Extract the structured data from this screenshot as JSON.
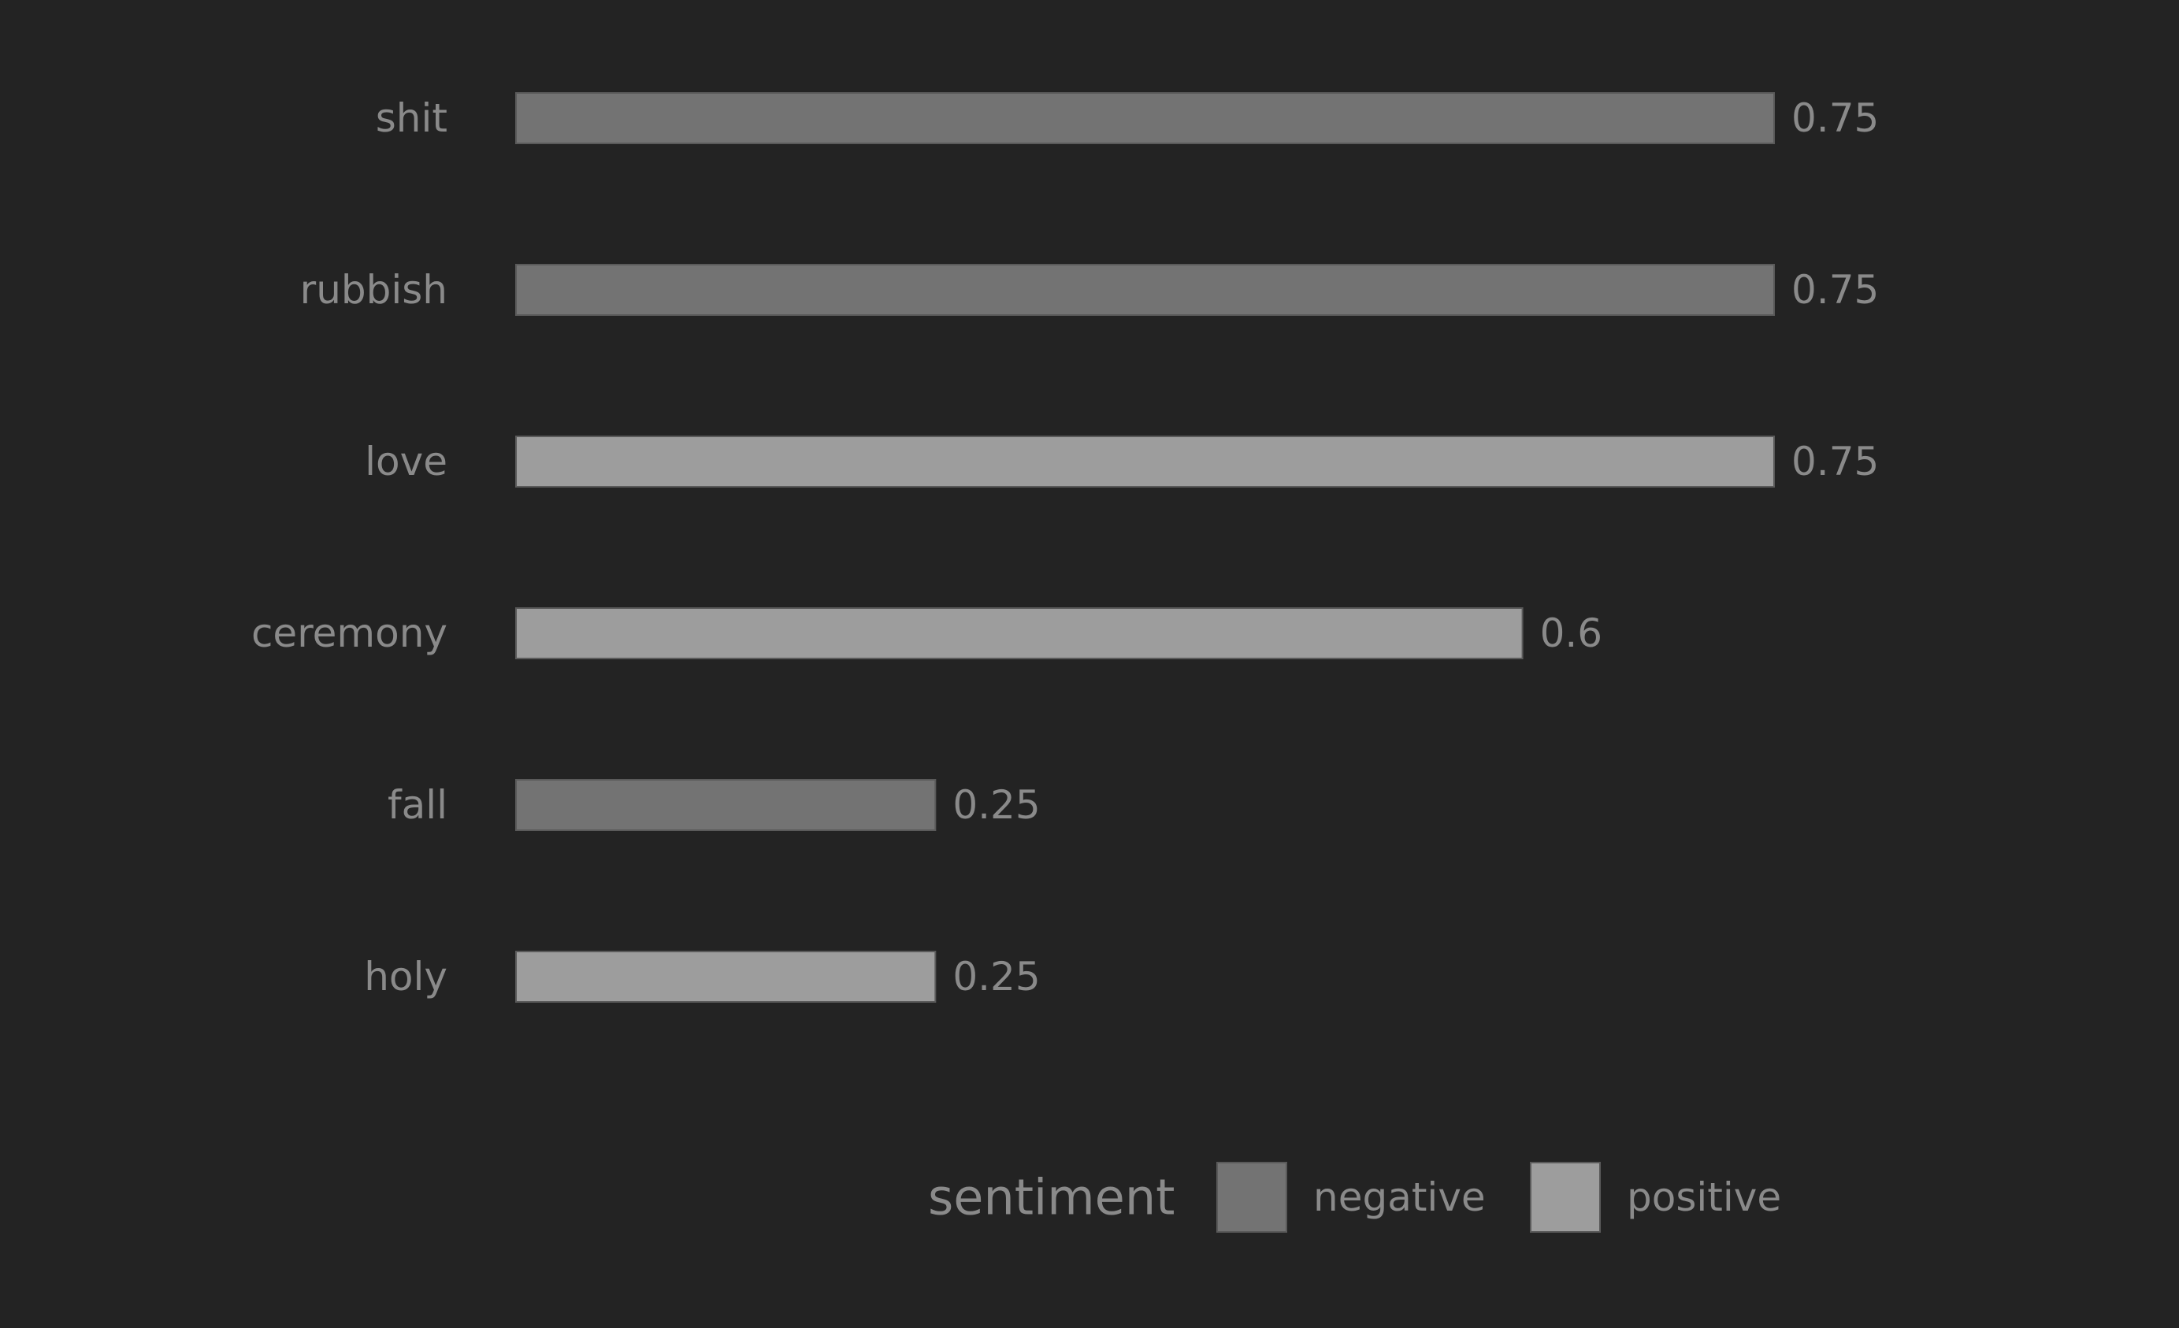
{
  "chart_data": {
    "type": "bar",
    "orientation": "horizontal",
    "categories": [
      "shit",
      "rubbish",
      "love",
      "ceremony",
      "fall",
      "holy"
    ],
    "values": [
      0.75,
      0.75,
      0.75,
      0.6,
      0.25,
      0.25
    ],
    "value_labels": [
      "0.75",
      "0.75",
      "0.75",
      "0.6",
      "0.25",
      "0.25"
    ],
    "sentiment": [
      "negative",
      "negative",
      "positive",
      "positive",
      "negative",
      "positive"
    ],
    "xlim": [
      0,
      0.75
    ],
    "grid": false,
    "title": "",
    "xlabel": "",
    "ylabel": "",
    "legend": {
      "title": "sentiment",
      "placement": "bottom",
      "entries": [
        {
          "key": "negative",
          "label": "negative",
          "color": "#737373"
        },
        {
          "key": "positive",
          "label": "positive",
          "color": "#9d9d9d"
        }
      ]
    },
    "colors": {
      "background": "#232323",
      "text": "#8a8a8a"
    }
  }
}
